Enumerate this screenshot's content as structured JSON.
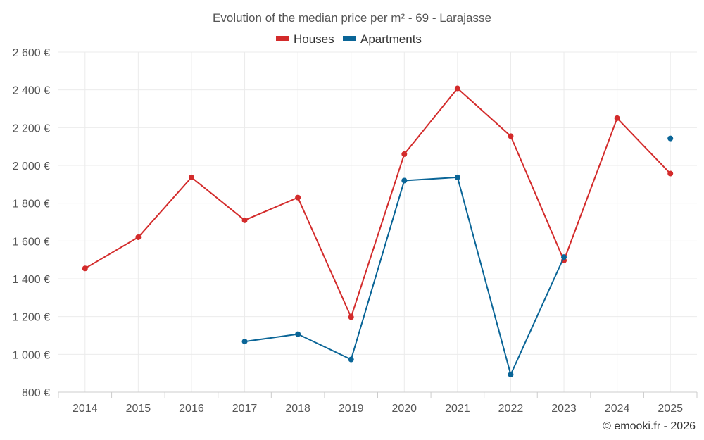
{
  "chart_data": {
    "type": "line",
    "title": "Evolution of the median price per m² - 69 - Larajasse",
    "categories": [
      "2014",
      "2015",
      "2016",
      "2017",
      "2018",
      "2019",
      "2020",
      "2021",
      "2022",
      "2023",
      "2024",
      "2025"
    ],
    "y_ticks": [
      "800 €",
      "1 000 €",
      "1 200 €",
      "1 400 €",
      "1 600 €",
      "1 800 €",
      "2 000 €",
      "2 200 €",
      "2 400 €",
      "2 600 €"
    ],
    "ylim": [
      800,
      2600
    ],
    "grid": true,
    "legend_position": "top-center",
    "series": [
      {
        "name": "Houses",
        "color": "#d32b2b",
        "values": [
          1455,
          1620,
          1937,
          1710,
          1830,
          1197,
          2060,
          2408,
          2155,
          1497,
          2250,
          1957
        ]
      },
      {
        "name": "Apartments",
        "color": "#0a6597",
        "values": [
          null,
          null,
          null,
          1068,
          1107,
          973,
          1920,
          1937,
          893,
          1515,
          null,
          2143
        ]
      }
    ],
    "credit": "© emooki.fr - 2026"
  }
}
